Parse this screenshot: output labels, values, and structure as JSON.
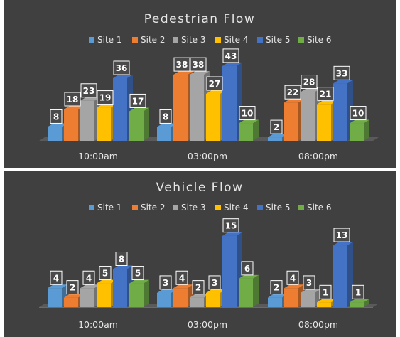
{
  "colors": {
    "background": "#404040",
    "text": "#e6e6e6",
    "floor": "#5a5a5a",
    "label_fill": "#4a4a4a",
    "label_border": "#ffffff"
  },
  "chart_data": [
    {
      "type": "bar",
      "style": "3d-clustered-column",
      "title": "Pedestrian Flow",
      "legend_position": "top",
      "grid": false,
      "categories": [
        "10:00am",
        "03:00pm",
        "08:00pm"
      ],
      "ylim": [
        0,
        45
      ],
      "series": [
        {
          "name": "Site 1",
          "color": "#5b9bd5",
          "values": [
            8,
            8,
            2
          ]
        },
        {
          "name": "Site 2",
          "color": "#ed7d31",
          "values": [
            18,
            38,
            22
          ]
        },
        {
          "name": "Site 3",
          "color": "#a5a5a5",
          "values": [
            23,
            38,
            28
          ]
        },
        {
          "name": "Site 4",
          "color": "#ffc000",
          "values": [
            19,
            27,
            21
          ]
        },
        {
          "name": "Site 5",
          "color": "#4472c4",
          "values": [
            36,
            43,
            33
          ]
        },
        {
          "name": "Site 6",
          "color": "#70ad47",
          "values": [
            17,
            10,
            10
          ]
        }
      ]
    },
    {
      "type": "bar",
      "style": "3d-clustered-column",
      "title": "Vehicle Flow",
      "legend_position": "top",
      "grid": false,
      "categories": [
        "10:00am",
        "03:00pm",
        "08:00pm"
      ],
      "ylim": [
        0,
        16
      ],
      "series": [
        {
          "name": "Site 1",
          "color": "#5b9bd5",
          "values": [
            4,
            3,
            2
          ]
        },
        {
          "name": "Site 2",
          "color": "#ed7d31",
          "values": [
            2,
            4,
            4
          ]
        },
        {
          "name": "Site 3",
          "color": "#a5a5a5",
          "values": [
            4,
            2,
            3
          ]
        },
        {
          "name": "Site 4",
          "color": "#ffc000",
          "values": [
            5,
            3,
            1
          ]
        },
        {
          "name": "Site 5",
          "color": "#4472c4",
          "values": [
            8,
            15,
            13
          ]
        },
        {
          "name": "Site 6",
          "color": "#70ad47",
          "values": [
            5,
            6,
            1
          ]
        }
      ]
    }
  ]
}
